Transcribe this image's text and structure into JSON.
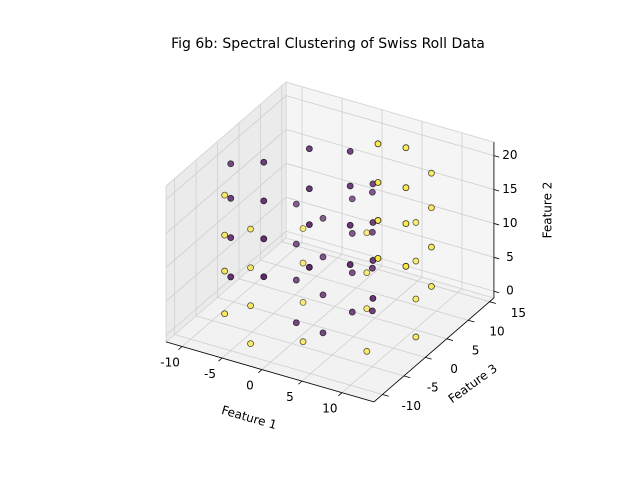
{
  "chart_data": {
    "type": "scatter3d",
    "title": "Fig 6b: Spectral Clustering of Swiss Roll Data",
    "xlabel": "Feature 1",
    "ylabel": "Feature 3",
    "zlabel": "Feature 2",
    "xlim": [
      -12,
      14
    ],
    "ylim": [
      -12,
      16
    ],
    "zlim": [
      -1,
      22
    ],
    "xticks": [
      -10,
      -5,
      0,
      5,
      10
    ],
    "yticks": [
      -10,
      -5,
      0,
      5,
      10,
      15
    ],
    "zticks": [
      0,
      5,
      10,
      15,
      20
    ],
    "grid": true,
    "series": [
      {
        "color": "#440154",
        "x": [
          0.42,
          0.42,
          0.42,
          0.42,
          3.43,
          3.43,
          3.43,
          3.43,
          5.76,
          5.76,
          5.76,
          5.76,
          6.27,
          6.27,
          6.27,
          6.27,
          4.38,
          4.38,
          4.38,
          4.38,
          0.42,
          0.42,
          0.42,
          0.42,
          -4.36,
          -4.36,
          -4.36,
          -4.36,
          -8.2,
          -8.2,
          -8.2,
          -8.2,
          -9.45,
          -9.45,
          -9.45,
          -9.45
        ],
        "y": [
          -4.78,
          -4.78,
          -4.78,
          -4.78,
          -4.17,
          -4.17,
          -4.17,
          -4.17,
          -1.68,
          -1.68,
          -1.68,
          -1.68,
          2.06,
          2.06,
          2.06,
          2.06,
          5.71,
          5.71,
          5.71,
          5.71,
          7.79,
          7.79,
          7.79,
          7.79,
          7.18,
          7.18,
          7.18,
          7.18,
          3.71,
          3.71,
          3.71,
          3.71,
          -1.67,
          -1.67,
          -1.67,
          -1.67
        ],
        "z": [
          2.1,
          8.4,
          13.7,
          19.6,
          1.3,
          6.9,
          12.5,
          18.2,
          3.8,
          9.6,
          15.4,
          20.5,
          2.1,
          8.4,
          13.7,
          19.6,
          1.3,
          6.9,
          12.5,
          18.2,
          3.8,
          9.6,
          15.4,
          20.5,
          2.1,
          8.4,
          13.7,
          19.6,
          1.3,
          6.9,
          12.5,
          18.2,
          3.8,
          9.6,
          15.4,
          20.5
        ]
      },
      {
        "color": "#fde725",
        "x": [
          -7.28,
          -7.28,
          -7.28,
          -7.28,
          -2.2,
          -2.2,
          -2.2,
          -2.2,
          4.35,
          4.35,
          4.35,
          4.35,
          10.13,
          10.13,
          10.13,
          10.13,
          12.59,
          12.59,
          12.59,
          12.59,
          10.4,
          10.4,
          10.4,
          10.4,
          4.59,
          4.59,
          4.59,
          4.59,
          0.52,
          0.52,
          0.52,
          0.52
        ],
        "y": [
          -7.14,
          -7.14,
          -7.14,
          -7.14,
          -10.57,
          -10.57,
          -10.57,
          -10.57,
          -10.54,
          -10.54,
          -10.54,
          -10.54,
          -6.44,
          -6.44,
          -6.44,
          -6.44,
          0.42,
          0.42,
          0.42,
          0.42,
          8.13,
          8.13,
          8.13,
          8.13,
          13.02,
          13.02,
          13.02,
          13.02,
          14.09,
          14.09,
          14.09,
          14.09
        ],
        "z": [
          2.1,
          8.4,
          13.7,
          19.6,
          1.3,
          6.9,
          12.5,
          18.2,
          3.8,
          9.6,
          15.4,
          20.5,
          2.1,
          8.4,
          13.7,
          19.6,
          1.3,
          6.9,
          12.5,
          18.2,
          3.8,
          9.6,
          15.4,
          20.5,
          2.1,
          8.4,
          13.7,
          19.6,
          1.3,
          6.9,
          12.5,
          18.2
        ]
      }
    ]
  }
}
